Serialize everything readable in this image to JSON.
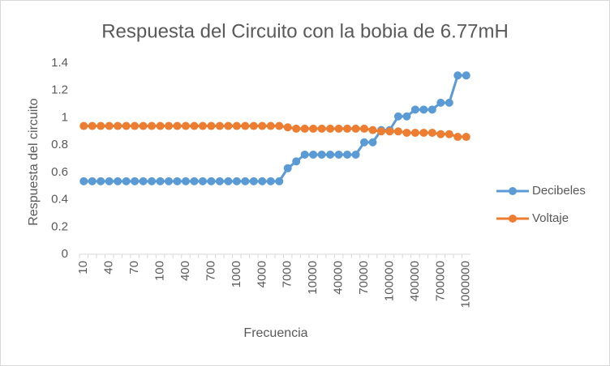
{
  "chart_data": {
    "type": "line",
    "title": "Respuesta del Circuito con la bobia de 6.77mH",
    "x_label": "Frecuencia",
    "y_label": "Respuesta del circuito",
    "categories": [
      "10",
      null,
      null,
      "40",
      null,
      null,
      "70",
      null,
      null,
      "100",
      null,
      null,
      "400",
      null,
      null,
      "700",
      null,
      null,
      "1000",
      null,
      null,
      "4000",
      null,
      null,
      "7000",
      null,
      null,
      "10000",
      null,
      null,
      "40000",
      null,
      null,
      "70000",
      null,
      null,
      "100000",
      null,
      null,
      "400000",
      null,
      null,
      "700000",
      null,
      null,
      "1000000"
    ],
    "series": [
      {
        "name": "Decibeles",
        "color": "#5b9bd5",
        "values": [
          0.535,
          0.535,
          0.535,
          0.535,
          0.535,
          0.535,
          0.535,
          0.535,
          0.535,
          0.535,
          0.535,
          0.535,
          0.535,
          0.535,
          0.535,
          0.535,
          0.535,
          0.535,
          0.535,
          0.535,
          0.535,
          0.535,
          0.535,
          0.535,
          0.63,
          0.68,
          0.73,
          0.73,
          0.73,
          0.73,
          0.73,
          0.73,
          0.73,
          0.82,
          0.82,
          0.91,
          0.91,
          1.01,
          1.01,
          1.06,
          1.06,
          1.06,
          1.11,
          1.11,
          1.31,
          1.31
        ]
      },
      {
        "name": "Voltaje",
        "color": "#ed7d31",
        "values": [
          0.94,
          0.94,
          0.94,
          0.94,
          0.94,
          0.94,
          0.94,
          0.94,
          0.94,
          0.94,
          0.94,
          0.94,
          0.94,
          0.94,
          0.94,
          0.94,
          0.94,
          0.94,
          0.94,
          0.94,
          0.94,
          0.94,
          0.94,
          0.94,
          0.93,
          0.92,
          0.92,
          0.92,
          0.92,
          0.92,
          0.92,
          0.92,
          0.92,
          0.92,
          0.91,
          0.9,
          0.9,
          0.9,
          0.89,
          0.89,
          0.89,
          0.89,
          0.88,
          0.88,
          0.86,
          0.86
        ]
      }
    ],
    "ylim": [
      0,
      1.4
    ],
    "yticks": [
      0,
      0.2,
      0.4,
      0.6,
      0.8,
      1,
      1.2,
      1.4
    ],
    "grid": false,
    "legend": "right"
  }
}
